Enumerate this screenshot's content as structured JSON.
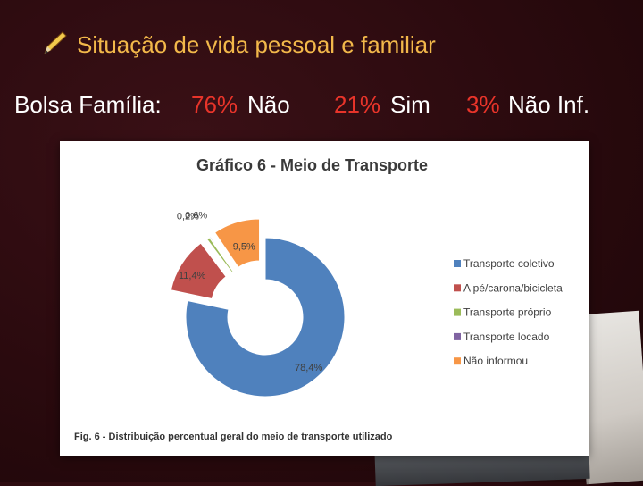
{
  "slide": {
    "title": "Situação de vida pessoal e familiar",
    "title_icon": "pencil-icon",
    "stats": {
      "label": "Bolsa Família:",
      "items": [
        {
          "pct": "76%",
          "text": "Não"
        },
        {
          "pct": "21%",
          "text": "Sim"
        },
        {
          "pct": "3%",
          "text": "Não Inf."
        }
      ]
    }
  },
  "colors": {
    "title": "#f2b84a",
    "highlight": "#e8342a"
  },
  "chart_data": {
    "type": "pie",
    "variant": "donut",
    "title": "Gráfico 6 - Meio de Transporte",
    "caption": "Fig. 6 - Distribuição percentual geral do meio de transporte utilizado",
    "legend_position": "right",
    "series": [
      {
        "name": "Transporte coletivo",
        "value": 78.4,
        "label": "78,4%",
        "color": "#4f81bd"
      },
      {
        "name": "A pé/carona/bicicleta",
        "value": 11.4,
        "label": "11,4%",
        "color": "#c0504d"
      },
      {
        "name": "Transporte próprio",
        "value": 0.6,
        "label": "0,6%",
        "color": "#9bbb59"
      },
      {
        "name": "Transporte locado",
        "value": 0.2,
        "label": "0,2%",
        "color": "#8064a2"
      },
      {
        "name": "Não informou",
        "value": 9.5,
        "label": "9,5%",
        "color": "#f79646"
      }
    ]
  }
}
